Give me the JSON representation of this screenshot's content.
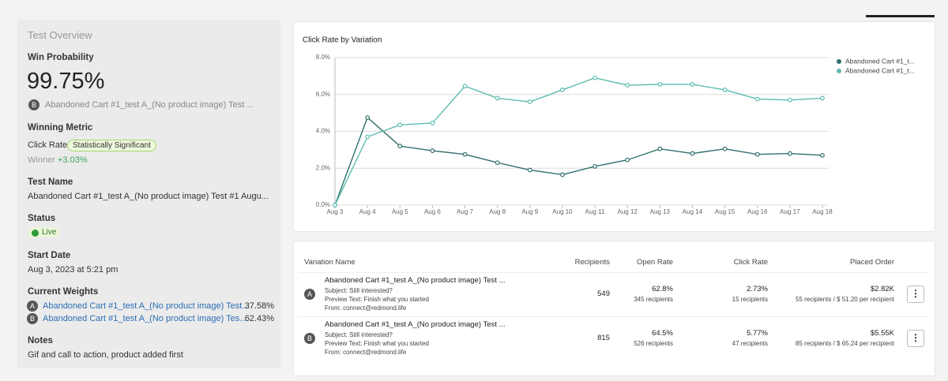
{
  "overview": {
    "title": "Test Overview",
    "win_probability": {
      "label": "Win Probability",
      "value": "99.75%",
      "badge": "B",
      "variation": "Abandoned Cart #1_test A_(No product image) Test ..."
    },
    "winning_metric": {
      "label": "Winning Metric",
      "metric": "Click Rate",
      "tag": "Statistically Significant",
      "winner_label": "Winner",
      "winner_value": "+3.03%"
    },
    "test_name": {
      "label": "Test Name",
      "value": "Abandoned Cart #1_test A_(No product image) Test #1 Augu..."
    },
    "status": {
      "label": "Status",
      "value": "Live"
    },
    "start_date": {
      "label": "Start Date",
      "value": "Aug 3, 2023 at 5:21 pm"
    },
    "current_weights": {
      "label": "Current Weights",
      "rows": [
        {
          "badge": "A",
          "name": "Abandoned Cart #1_test A_(No product image) Test...",
          "weight": "37.58%"
        },
        {
          "badge": "B",
          "name": "Abandoned Cart #1_test A_(No product image) Tes...",
          "weight": "62.43%"
        }
      ]
    },
    "notes": {
      "label": "Notes",
      "value": "Gif and call to action, product added first"
    }
  },
  "chart_data": {
    "type": "line",
    "title": "Click Rate by Variation",
    "categories": [
      "Aug 3",
      "Aug 4",
      "Aug 5",
      "Aug 6",
      "Aug 7",
      "Aug 8",
      "Aug 9",
      "Aug 10",
      "Aug 11",
      "Aug 12",
      "Aug 13",
      "Aug 14",
      "Aug 15",
      "Aug 16",
      "Aug 17",
      "Aug 18"
    ],
    "series": [
      {
        "name": "Abandoned Cart #1_t...",
        "color": "#2f6f6c",
        "values": [
          0,
          4.75,
          3.2,
          2.95,
          2.75,
          2.3,
          1.9,
          1.65,
          2.1,
          2.45,
          3.05,
          2.8,
          3.05,
          2.75,
          2.8,
          2.7
        ]
      },
      {
        "name": "Abandoned Cart #1_t...",
        "color": "#5cbcae",
        "values": [
          0,
          3.7,
          4.35,
          4.45,
          6.45,
          5.8,
          5.6,
          6.25,
          6.9,
          6.5,
          6.55,
          6.55,
          6.25,
          5.75,
          5.7,
          5.8
        ]
      }
    ],
    "ylim": [
      0,
      8
    ],
    "yticks": [
      {
        "value": 0,
        "label": "0.0%"
      },
      {
        "value": 2,
        "label": "2.0%"
      },
      {
        "value": 4,
        "label": "4.0%"
      },
      {
        "value": 6,
        "label": "6.0%"
      },
      {
        "value": 8,
        "label": "8.0%"
      }
    ],
    "grid": true,
    "legend": "upper right"
  },
  "table": {
    "columns": [
      "Variation Name",
      "Recipients",
      "Open Rate",
      "Click Rate",
      "Placed Order"
    ],
    "rows": [
      {
        "badge": "A",
        "name": "Abandoned Cart #1_test A_(No product image) Test ...",
        "subject": "Subject: Still interested?",
        "preview": "Preview Text: Finish what you started",
        "from": "From: connect@redmond.life",
        "recipients": 549,
        "open_rate": "62.8%",
        "open_detail": "345 recipients",
        "click_rate": "2.73%",
        "click_detail": "15 recipients",
        "placed_order": "$2.82K",
        "placed_detail": "55 recipients / $ 51.20 per recipient"
      },
      {
        "badge": "B",
        "name": "Abandoned Cart #1_test A_(No product image) Test ...",
        "subject": "Subject: Still interested?",
        "preview": "Preview Text: Finish what you started",
        "from": "From: connect@redmond.life",
        "recipients": 815,
        "open_rate": "64.5%",
        "open_detail": "526 recipients",
        "click_rate": "5.77%",
        "click_detail": "47 recipients",
        "placed_order": "$5.55K",
        "placed_detail": "85 recipients / $ 65.24 per recipient"
      }
    ]
  }
}
